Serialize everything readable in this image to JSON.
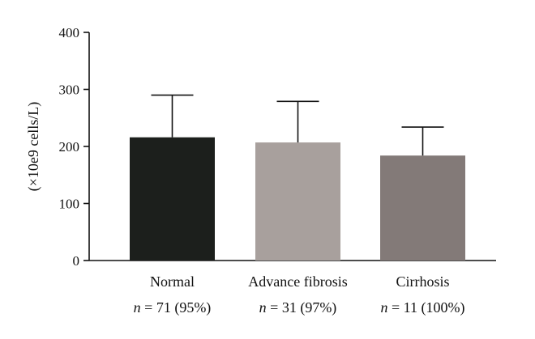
{
  "chart_data": {
    "type": "bar",
    "categories": [
      "Normal",
      "Advance fibrosis",
      "Cirrhosis"
    ],
    "sample_labels": [
      {
        "n": "n",
        "rest": " = 71 (95%)"
      },
      {
        "n": "n",
        "rest": " = 31 (97%)"
      },
      {
        "n": "n",
        "rest": " = 11 (100%)"
      }
    ],
    "values": [
      216,
      207,
      184
    ],
    "error_upper": [
      290,
      279,
      234
    ],
    "colors": [
      "#1c1f1c",
      "#a8a09d",
      "#837a78"
    ],
    "ylabel": "(×10e9 cells/L)",
    "ylim": [
      0,
      400
    ],
    "yticks": [
      "0",
      "100",
      "200",
      "300",
      "400"
    ],
    "grid": false
  }
}
